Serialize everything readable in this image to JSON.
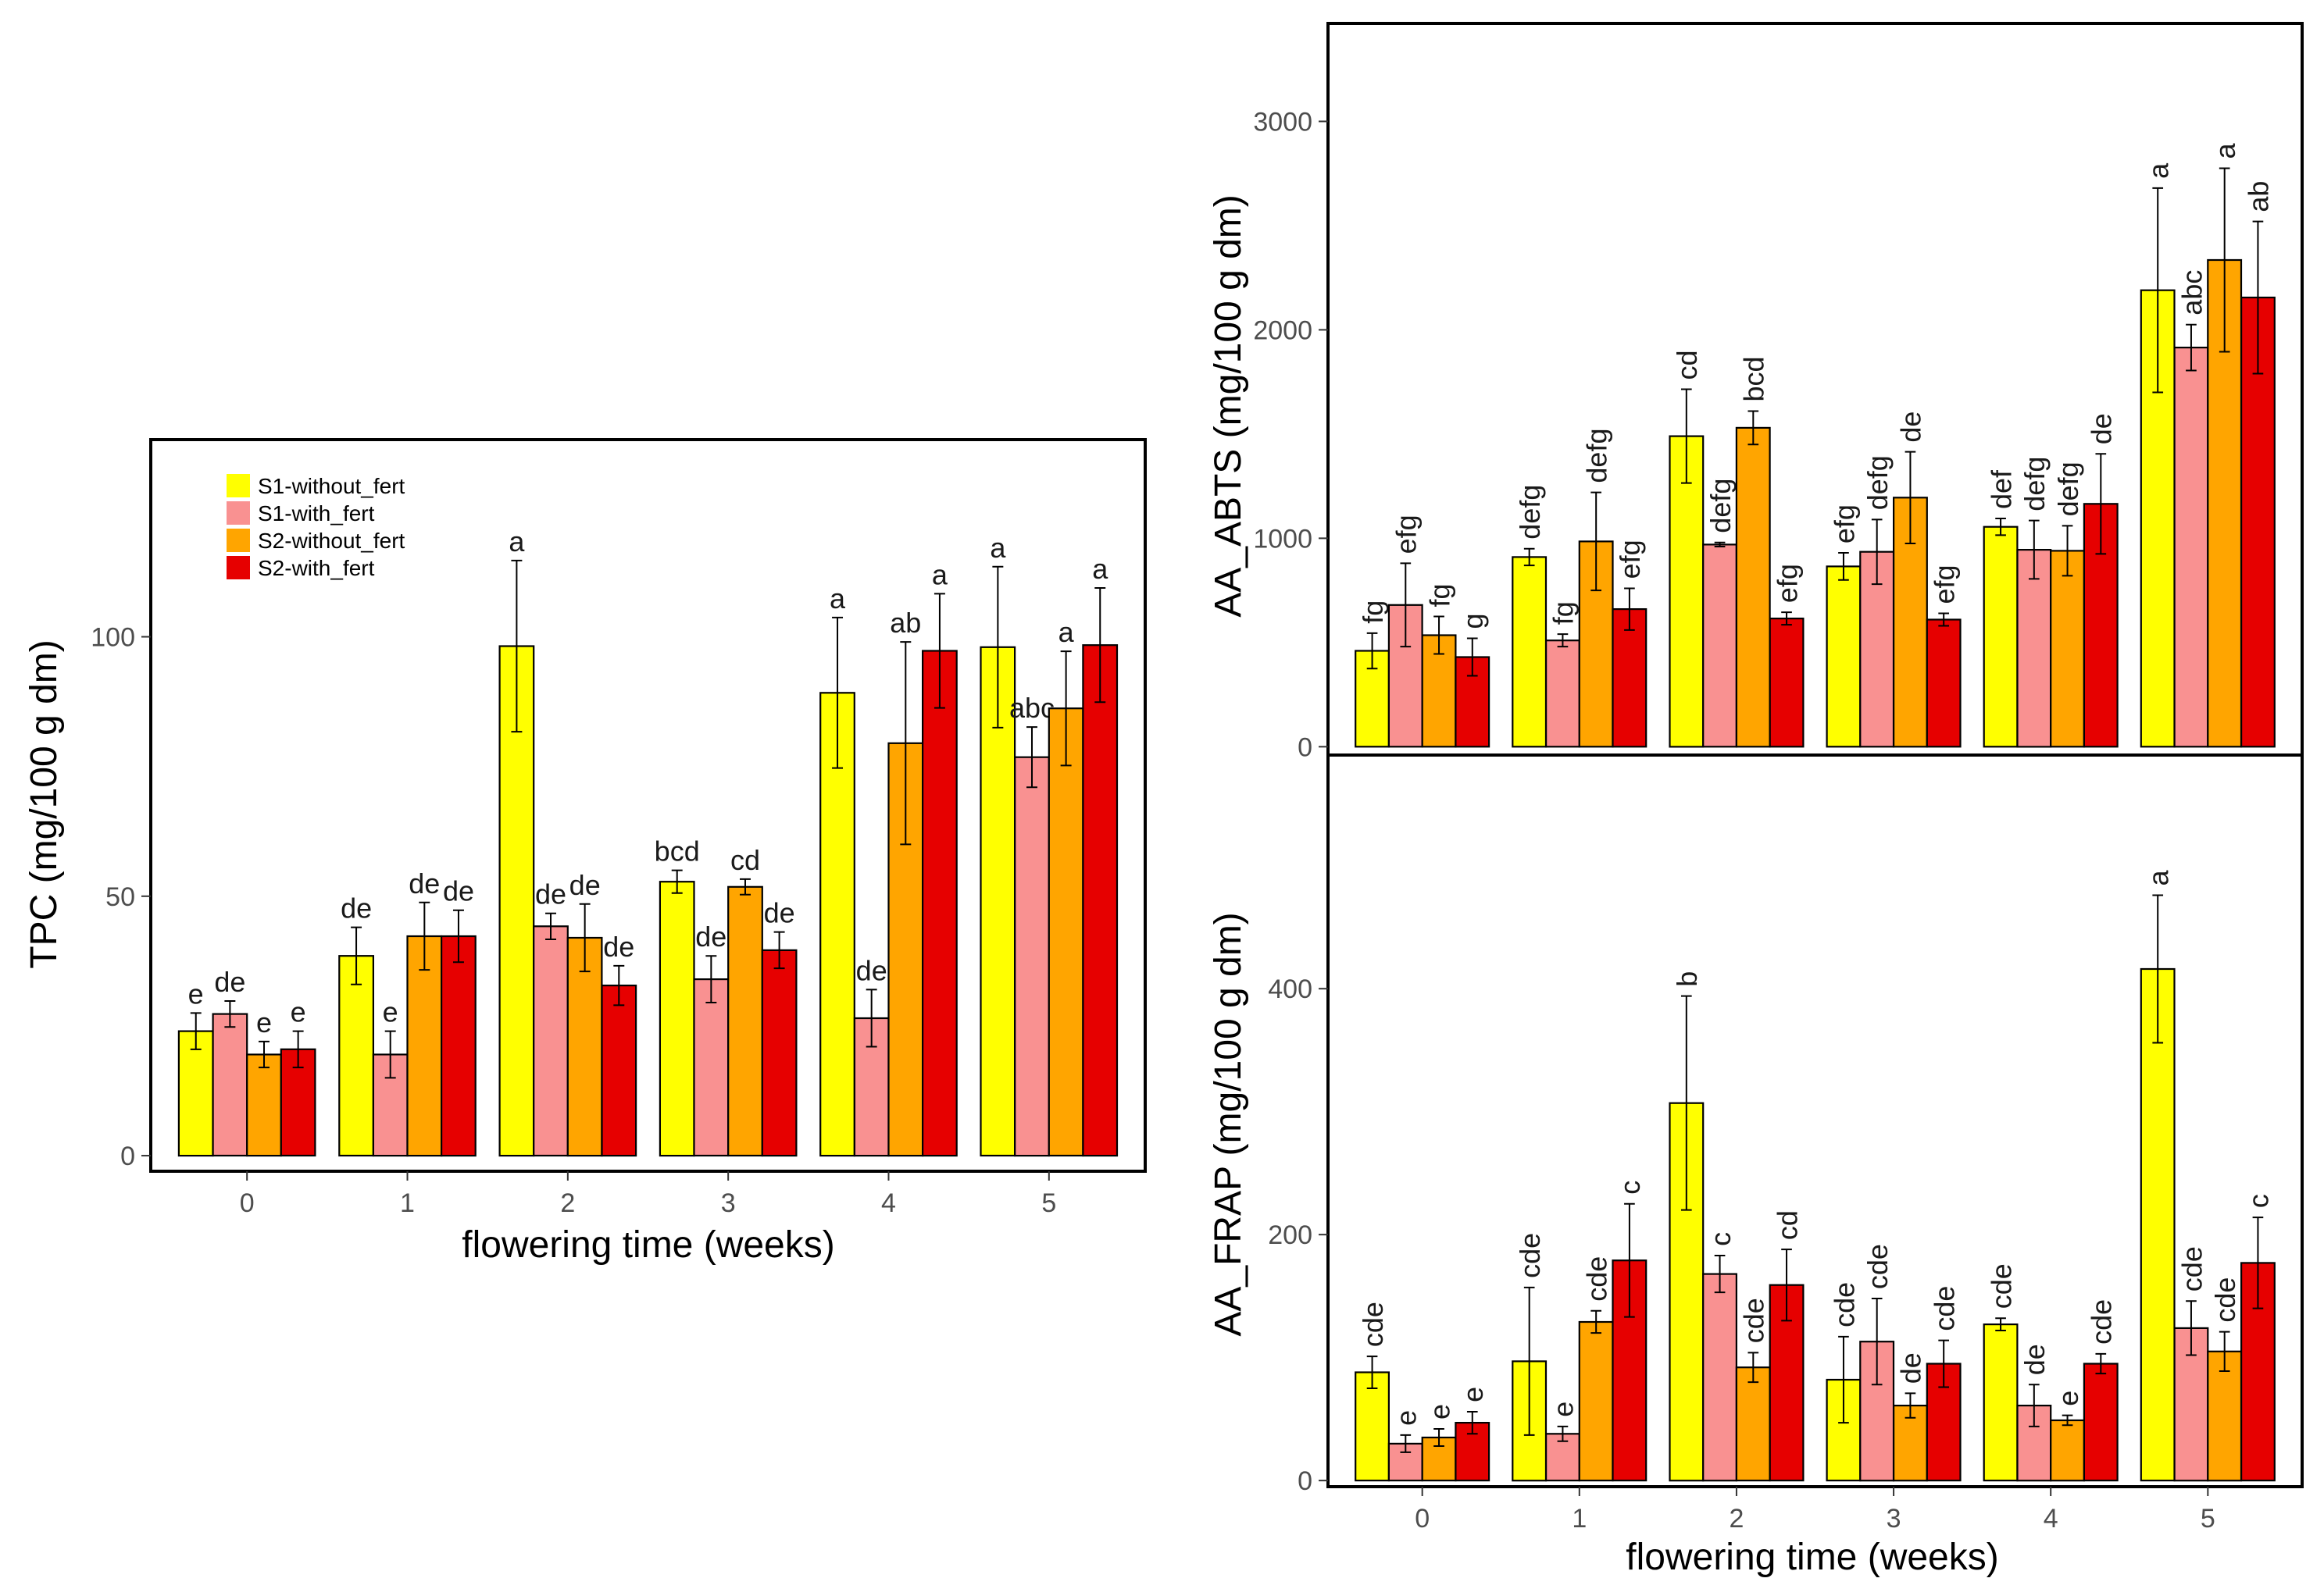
{
  "colors": {
    "S1-without_fert": "#FFFF00",
    "S1-with_fert": "#F99191",
    "S2-without_fert": "#FFA500",
    "S2-with_fert": "#E60000"
  },
  "chart_data": [
    {
      "id": "tpc",
      "type": "bar",
      "title": "",
      "xlabel": "flowering time (weeks)",
      "ylabel": "TPC (mg/100 g dm)",
      "categories": [
        "0",
        "1",
        "2",
        "3",
        "4",
        "5"
      ],
      "ylim": [
        -3,
        138
      ],
      "yticks": [
        0,
        50,
        100
      ],
      "grid": false,
      "legend": {
        "position": "top-left",
        "entries": [
          "S1-without_fert",
          "S1-with_fert",
          "S2-without_fert",
          "S2-with_fert"
        ]
      },
      "series": [
        {
          "name": "S1-without_fert",
          "values": [
            24,
            38.5,
            98.2,
            52.8,
            89.2,
            98
          ],
          "errors": [
            3.5,
            5.5,
            16.5,
            2.2,
            14.5,
            15.5
          ],
          "labels": [
            "e",
            "de",
            "a",
            "bcd",
            "a",
            "a"
          ]
        },
        {
          "name": "S1-with_fert",
          "values": [
            27.3,
            19.5,
            44.2,
            34,
            26.5,
            76.8
          ],
          "errors": [
            2.5,
            4.5,
            2.5,
            4.5,
            5.5,
            5.8
          ],
          "labels": [
            "de",
            "e",
            "de",
            "de",
            "de",
            "abc"
          ]
        },
        {
          "name": "S2-without_fert",
          "values": [
            19.5,
            42.3,
            42,
            51.8,
            79.5,
            86.2
          ],
          "errors": [
            2.5,
            6.5,
            6.5,
            1.5,
            19.5,
            11
          ],
          "labels": [
            "e",
            "de",
            "de",
            "cd",
            "ab",
            "a"
          ]
        },
        {
          "name": "S2-with_fert",
          "values": [
            20.5,
            42.3,
            32.8,
            39.6,
            97.3,
            98.4
          ],
          "errors": [
            3.5,
            5,
            3.8,
            3.5,
            11,
            11
          ],
          "labels": [
            "e",
            "de",
            "de",
            "de",
            "a",
            "a"
          ]
        }
      ]
    },
    {
      "id": "abts",
      "type": "bar",
      "title": "",
      "xlabel": "",
      "ylabel": "AA_ABTS (mg/100 g dm)",
      "categories": [
        "0",
        "1",
        "2",
        "3",
        "4",
        "5"
      ],
      "ylim": [
        -40,
        3470
      ],
      "yticks": [
        0,
        1000,
        2000,
        3000
      ],
      "grid": false,
      "series": [
        {
          "name": "S1-without_fert",
          "values": [
            460,
            910,
            1490,
            865,
            1055,
            2190
          ],
          "errors": [
            85,
            40,
            225,
            65,
            40,
            490
          ],
          "labels": [
            "fg",
            "defg",
            "cd",
            "efg",
            "def",
            "a"
          ]
        },
        {
          "name": "S1-with_fert",
          "values": [
            680,
            510,
            970,
            935,
            945,
            1915
          ],
          "errors": [
            200,
            30,
            10,
            155,
            140,
            110
          ],
          "labels": [
            "efg",
            "fg",
            "defg",
            "defg",
            "defg",
            "abc"
          ]
        },
        {
          "name": "S2-without_fert",
          "values": [
            535,
            985,
            1530,
            1195,
            940,
            2335
          ],
          "errors": [
            90,
            235,
            80,
            220,
            120,
            440
          ],
          "labels": [
            "fg",
            "defg",
            "bcd",
            "de",
            "defg",
            "a"
          ]
        },
        {
          "name": "S2-with_fert",
          "values": [
            430,
            660,
            615,
            610,
            1165,
            2155
          ],
          "errors": [
            90,
            100,
            30,
            30,
            240,
            365
          ],
          "labels": [
            "g",
            "efg",
            "efg",
            "efg",
            "de",
            "ab"
          ]
        }
      ]
    },
    {
      "id": "frap",
      "type": "bar",
      "title": "",
      "xlabel": "flowering time (weeks)",
      "ylabel": "AA_FRAP (mg/100 g dm)",
      "categories": [
        "0",
        "1",
        "2",
        "3",
        "4",
        "5"
      ],
      "ylim": [
        -5,
        590
      ],
      "yticks": [
        0,
        200,
        400
      ],
      "grid": false,
      "series": [
        {
          "name": "S1-without_fert",
          "values": [
            88,
            97,
            307,
            82,
            127,
            416
          ],
          "errors": [
            13,
            60,
            87,
            35,
            5,
            60
          ],
          "labels": [
            "cde",
            "cde",
            "b",
            "cde",
            "cde",
            "a"
          ]
        },
        {
          "name": "S1-with_fert",
          "values": [
            30,
            38,
            168,
            113,
            61,
            124
          ],
          "errors": [
            7,
            6,
            15,
            35,
            17,
            22
          ],
          "labels": [
            "e",
            "e",
            "c",
            "cde",
            "de",
            "cde"
          ]
        },
        {
          "name": "S2-without_fert",
          "values": [
            35,
            129,
            92,
            61,
            49,
            105
          ],
          "errors": [
            7,
            9,
            12,
            10,
            4,
            16
          ],
          "labels": [
            "e",
            "cde",
            "cde",
            "de",
            "e",
            "cde"
          ]
        },
        {
          "name": "S2-with_fert",
          "values": [
            47,
            179,
            159,
            95,
            95,
            177
          ],
          "errors": [
            9,
            46,
            29,
            19,
            8,
            37
          ],
          "labels": [
            "e",
            "c",
            "cd",
            "cde",
            "cde",
            "c"
          ]
        }
      ]
    }
  ]
}
